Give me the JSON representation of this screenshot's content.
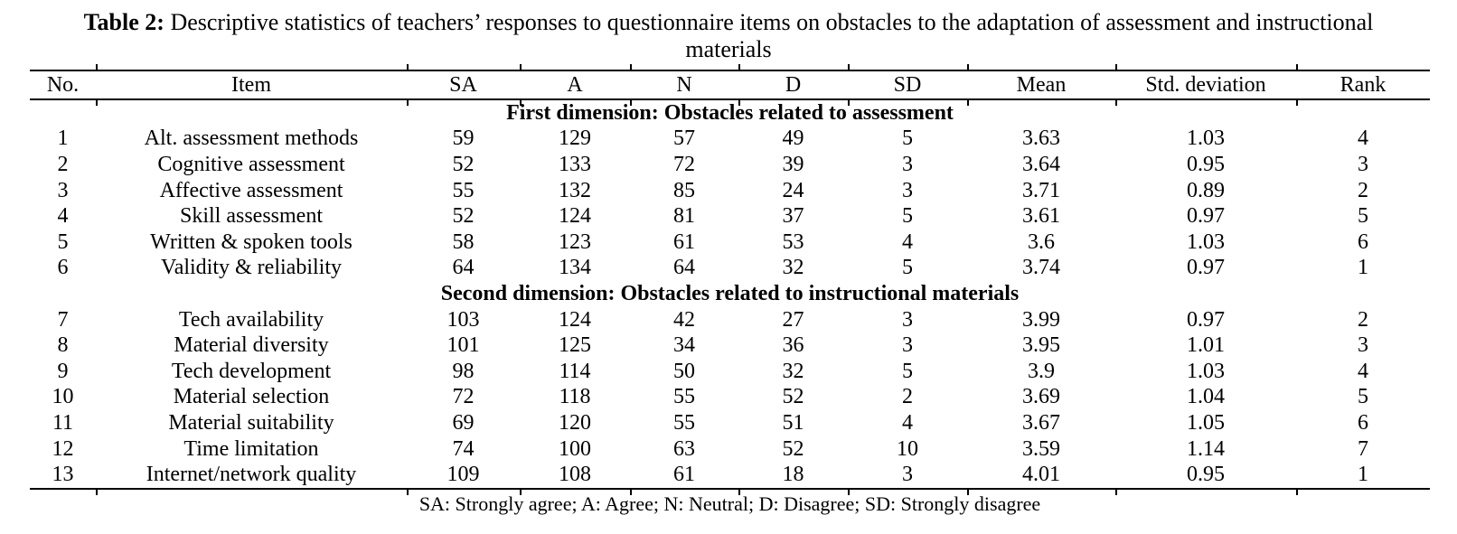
{
  "title": {
    "prefix": "Table 2:",
    "text": " Descriptive statistics of teachers’ responses to questionnaire items on obstacles to the adaptation of assessment and instructional materials"
  },
  "table": {
    "columns": [
      "No.",
      "Item",
      "SA",
      "A",
      "N",
      "D",
      "SD",
      "Mean",
      "Std. deviation",
      "Rank"
    ],
    "sections": [
      {
        "header": "First dimension: Obstacles related to assessment",
        "rows": [
          [
            "1",
            "Alt. assessment methods",
            "59",
            "129",
            "57",
            "49",
            "5",
            "3.63",
            "1.03",
            "4"
          ],
          [
            "2",
            "Cognitive assessment",
            "52",
            "133",
            "72",
            "39",
            "3",
            "3.64",
            "0.95",
            "3"
          ],
          [
            "3",
            "Affective assessment",
            "55",
            "132",
            "85",
            "24",
            "3",
            "3.71",
            "0.89",
            "2"
          ],
          [
            "4",
            "Skill assessment",
            "52",
            "124",
            "81",
            "37",
            "5",
            "3.61",
            "0.97",
            "5"
          ],
          [
            "5",
            "Written & spoken tools",
            "58",
            "123",
            "61",
            "53",
            "4",
            "3.6",
            "1.03",
            "6"
          ],
          [
            "6",
            "Validity & reliability",
            "64",
            "134",
            "64",
            "32",
            "5",
            "3.74",
            "0.97",
            "1"
          ]
        ]
      },
      {
        "header": "Second dimension: Obstacles related to instructional materials",
        "rows": [
          [
            "7",
            "Tech availability",
            "103",
            "124",
            "42",
            "27",
            "3",
            "3.99",
            "0.97",
            "2"
          ],
          [
            "8",
            "Material diversity",
            "101",
            "125",
            "34",
            "36",
            "3",
            "3.95",
            "1.01",
            "3"
          ],
          [
            "9",
            "Tech development",
            "98",
            "114",
            "50",
            "32",
            "5",
            "3.9",
            "1.03",
            "4"
          ],
          [
            "10",
            "Material selection",
            "72",
            "118",
            "55",
            "52",
            "2",
            "3.69",
            "1.04",
            "5"
          ],
          [
            "11",
            "Material suitability",
            "69",
            "120",
            "55",
            "51",
            "4",
            "3.67",
            "1.05",
            "6"
          ],
          [
            "12",
            "Time limitation",
            "74",
            "100",
            "63",
            "52",
            "10",
            "3.59",
            "1.14",
            "7"
          ],
          [
            "13",
            "Internet/network quality",
            "109",
            "108",
            "61",
            "18",
            "3",
            "4.01",
            "0.95",
            "1"
          ]
        ]
      }
    ],
    "footnote": "SA: Strongly agree; A: Agree; N: Neutral; D: Disagree; SD: Strongly disagree"
  },
  "colors": {
    "text": "#000000",
    "background": "#ffffff",
    "rule": "#000000"
  }
}
